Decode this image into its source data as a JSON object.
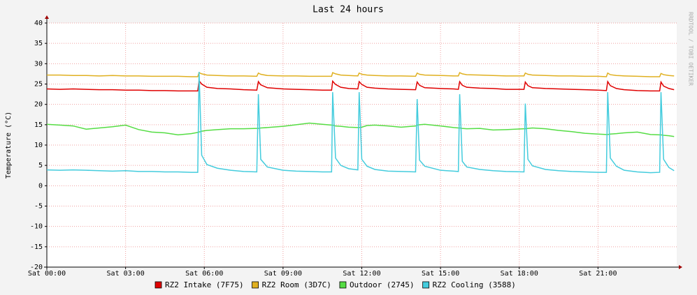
{
  "chart_data": {
    "type": "line",
    "title": "Last 24 hours",
    "y_label": "Temperature (°C)",
    "credit": "RRDTOOL / TOBI OETIKER",
    "x": [
      0,
      0.5,
      1,
      1.5,
      2,
      2.5,
      3,
      3.5,
      4,
      4.5,
      5,
      5.5,
      5.75,
      5.8,
      5.9,
      6.1,
      6.5,
      7,
      7.5,
      8,
      8.06,
      8.15,
      8.4,
      9,
      9.5,
      10,
      10.5,
      10.85,
      10.89,
      11,
      11.2,
      11.5,
      11.85,
      11.9,
      12,
      12.2,
      12.5,
      13,
      13.5,
      14.05,
      14.11,
      14.2,
      14.4,
      15,
      15.5,
      15.68,
      15.73,
      15.83,
      16,
      16.5,
      17,
      17.5,
      18.18,
      18.23,
      18.33,
      18.5,
      19,
      19.5,
      20,
      20.5,
      21,
      21.32,
      21.37,
      21.47,
      21.7,
      22,
      22.5,
      23,
      23.35,
      23.4,
      23.5,
      23.7,
      23.9
    ],
    "series": [
      {
        "name": "RZ2 Intake (7F75)",
        "color": "#e00000",
        "values": [
          23.8,
          23.7,
          23.8,
          23.7,
          23.6,
          23.6,
          23.5,
          23.5,
          23.4,
          23.4,
          23.3,
          23.3,
          23.3,
          25.8,
          25.0,
          24.2,
          23.9,
          23.8,
          23.6,
          23.5,
          25.6,
          24.8,
          24.1,
          23.8,
          23.7,
          23.6,
          23.5,
          23.5,
          25.7,
          24.9,
          24.2,
          23.9,
          23.8,
          25.6,
          24.9,
          24.2,
          24.0,
          23.8,
          23.7,
          23.6,
          25.5,
          24.7,
          24.1,
          23.9,
          23.8,
          23.7,
          25.6,
          24.7,
          24.2,
          24.0,
          23.9,
          23.7,
          23.7,
          25.5,
          24.6,
          24.1,
          23.9,
          23.8,
          23.7,
          23.6,
          23.5,
          23.4,
          25.6,
          24.6,
          23.9,
          23.6,
          23.4,
          23.3,
          23.3,
          25.5,
          24.5,
          23.9,
          23.6
        ]
      },
      {
        "name": "RZ2 Room (3D7C)",
        "color": "#e0b020",
        "values": [
          27.2,
          27.2,
          27.1,
          27.1,
          27.0,
          27.1,
          27.0,
          27.0,
          26.9,
          26.9,
          26.9,
          26.8,
          26.8,
          27.8,
          27.5,
          27.2,
          27.1,
          27.0,
          27.0,
          26.9,
          27.7,
          27.4,
          27.1,
          27.0,
          27.0,
          26.9,
          26.9,
          26.9,
          27.8,
          27.5,
          27.2,
          27.1,
          27.0,
          27.7,
          27.4,
          27.2,
          27.1,
          27.0,
          27.0,
          26.9,
          27.7,
          27.4,
          27.2,
          27.1,
          27.0,
          27.0,
          27.8,
          27.5,
          27.3,
          27.2,
          27.1,
          27.0,
          27.0,
          27.7,
          27.4,
          27.2,
          27.1,
          27.0,
          27.0,
          26.9,
          26.9,
          26.8,
          27.7,
          27.3,
          27.1,
          27.0,
          26.9,
          26.8,
          26.8,
          27.6,
          27.3,
          27.1,
          27.0
        ]
      },
      {
        "name": "Outdoor (2745)",
        "color": "#55dd44",
        "values": [
          15.1,
          14.9,
          14.7,
          13.9,
          14.2,
          14.5,
          14.9,
          13.8,
          13.2,
          13.0,
          12.5,
          12.8,
          13.1,
          13.2,
          13.4,
          13.6,
          13.8,
          14.0,
          14.0,
          14.1,
          14.1,
          14.2,
          14.3,
          14.6,
          15.0,
          15.4,
          15.1,
          14.9,
          14.9,
          14.7,
          14.6,
          14.4,
          14.3,
          14.3,
          14.4,
          14.8,
          14.9,
          14.7,
          14.4,
          14.7,
          14.9,
          15.0,
          15.1,
          14.7,
          14.3,
          14.2,
          14.2,
          14.1,
          14.0,
          14.1,
          13.7,
          13.8,
          14.0,
          14.0,
          14.1,
          14.2,
          14.0,
          13.6,
          13.3,
          12.9,
          12.7,
          12.6,
          12.6,
          12.7,
          12.8,
          13.0,
          13.2,
          12.6,
          12.5,
          12.5,
          12.4,
          12.3,
          12.1
        ]
      },
      {
        "name": "RZ2 Cooling (3588)",
        "color": "#44ccdd",
        "values": [
          3.9,
          3.8,
          3.9,
          3.8,
          3.7,
          3.6,
          3.7,
          3.5,
          3.5,
          3.4,
          3.4,
          3.3,
          3.3,
          28,
          7.5,
          5.2,
          4.3,
          3.8,
          3.5,
          3.4,
          22.5,
          6.5,
          4.6,
          3.8,
          3.6,
          3.5,
          3.4,
          3.4,
          23,
          6.8,
          5.0,
          4.2,
          3.9,
          23,
          6.5,
          4.8,
          4.0,
          3.6,
          3.5,
          3.4,
          21.3,
          6.3,
          4.8,
          3.8,
          3.6,
          3.5,
          22.5,
          6,
          4.6,
          4.0,
          3.7,
          3.5,
          3.4,
          20.2,
          6.5,
          4.9,
          4.0,
          3.7,
          3.5,
          3.4,
          3.3,
          3.3,
          23,
          6.8,
          4.8,
          3.8,
          3.4,
          3.2,
          3.3,
          23,
          6.5,
          4.5,
          3.7
        ]
      }
    ],
    "xlim": [
      0,
      24
    ],
    "xticks": [
      {
        "value": 0,
        "label": "Sat 00:00"
      },
      {
        "value": 3,
        "label": "Sat 03:00"
      },
      {
        "value": 6,
        "label": "Sat 06:00"
      },
      {
        "value": 9,
        "label": "Sat 09:00"
      },
      {
        "value": 12,
        "label": "Sat 12:00"
      },
      {
        "value": 15,
        "label": "Sat 15:00"
      },
      {
        "value": 18,
        "label": "Sat 18:00"
      },
      {
        "value": 21,
        "label": "Sat 21:00"
      }
    ],
    "ylim": [
      -20,
      40
    ],
    "yticks": [
      -20,
      -15,
      -10,
      -5,
      0,
      5,
      10,
      15,
      20,
      25,
      30,
      35,
      40
    ],
    "grid": true
  }
}
